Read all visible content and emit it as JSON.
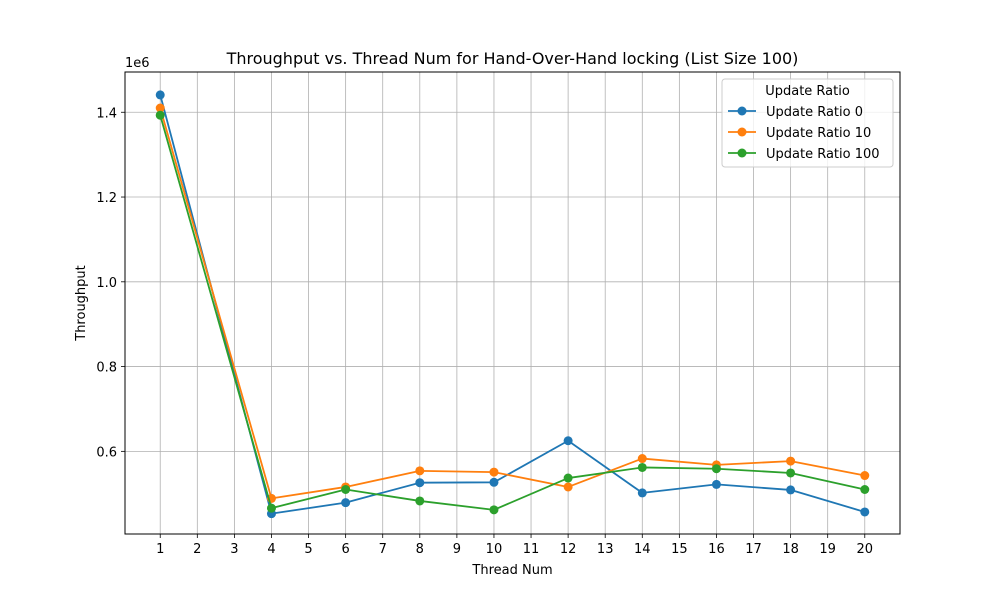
{
  "chart_data": {
    "type": "line",
    "title": "Throughput vs. Thread Num for Hand-Over-Hand locking (List Size 100)",
    "xlabel": "Thread Num",
    "ylabel": "Throughput",
    "y_offset_label": "1e6",
    "x_ticks": [
      1,
      2,
      3,
      4,
      5,
      6,
      7,
      8,
      9,
      10,
      11,
      12,
      13,
      14,
      15,
      16,
      17,
      18,
      19,
      20
    ],
    "y_ticks": [
      0.6,
      0.8,
      1.0,
      1.2,
      1.4
    ],
    "y_tick_labels": [
      "0.6",
      "0.8",
      "1.0",
      "1.2",
      "1.4"
    ],
    "xlim": [
      0.05,
      20.95
    ],
    "ylim": [
      0.405,
      1.495
    ],
    "y_scale_factor": 1000000,
    "grid": true,
    "legend": {
      "title": "Update Ratio",
      "placement": "top-right"
    },
    "x": [
      1,
      4,
      6,
      8,
      10,
      12,
      14,
      16,
      18,
      20
    ],
    "series": [
      {
        "name": "Update Ratio 0",
        "color": "#1f77b4",
        "values": [
          1.441,
          0.453,
          0.479,
          0.526,
          0.527,
          0.625,
          0.502,
          0.522,
          0.509,
          0.457
        ]
      },
      {
        "name": "Update Ratio 10",
        "color": "#ff7f0e",
        "values": [
          1.41,
          0.489,
          0.516,
          0.554,
          0.551,
          0.516,
          0.583,
          0.568,
          0.577,
          0.543
        ]
      },
      {
        "name": "Update Ratio 100",
        "color": "#2ca02c",
        "values": [
          1.393,
          0.466,
          0.51,
          0.483,
          0.462,
          0.537,
          0.562,
          0.559,
          0.549,
          0.51
        ]
      }
    ]
  }
}
